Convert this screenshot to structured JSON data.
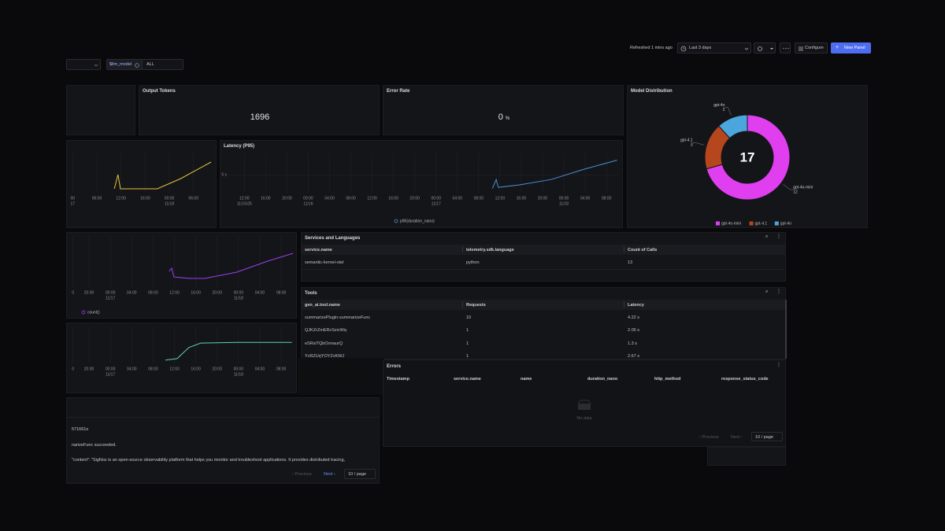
{
  "toolbar": {
    "refreshed": "Refreshed 1 mins ago",
    "time_range": "Last 3 days",
    "configure": "Configure",
    "new_panel": "New Panel"
  },
  "variables": {
    "name": "$llm_model",
    "value": "ALL"
  },
  "output_tokens": {
    "title": "Output Tokens",
    "value": 1696
  },
  "error_rate": {
    "title": "Error Rate",
    "value": 0,
    "unit": "%"
  },
  "chart_data": [
    {
      "type": "pie",
      "title": "Model Distribution",
      "total": 17,
      "donut": true,
      "categories": [
        "gpt-4o-mini",
        "gpt-4.1",
        "gpt-4o"
      ],
      "values": [
        12,
        3,
        2
      ],
      "colors": [
        "#e03ff0",
        "#b5461d",
        "#4aa6dc"
      ]
    },
    {
      "type": "line",
      "grid": true,
      "xlim": [
        -0.3,
        22.9
      ],
      "ylim": [
        0,
        10
      ],
      "xticks": [
        {
          "value": 0,
          "label": "00"
        },
        {
          "value": 4,
          "label": "06:00"
        },
        {
          "value": 8,
          "label": "12:00"
        },
        {
          "value": 12,
          "label": "16:00"
        },
        {
          "value": 16,
          "label": "00:00"
        },
        {
          "value": 20,
          "label": "06:00"
        }
      ],
      "x_dates": [
        {
          "value": 0,
          "label": "17"
        },
        {
          "value": 16,
          "label": "11/18"
        }
      ],
      "series": [
        {
          "color": "#e3c43a",
          "x": [
            6.9,
            7.5,
            7.9,
            14.0,
            17.9,
            22.9
          ],
          "values": [
            1.0,
            4.6,
            1.0,
            1.0,
            3.6,
            7.8
          ]
        }
      ]
    },
    {
      "type": "line",
      "title": "Latency (P95)",
      "grid": true,
      "xlim": [
        -3,
        70.2
      ],
      "ylim": [
        0,
        11
      ],
      "yticks": [
        {
          "value": 5,
          "label": "5 s"
        }
      ],
      "xticks": [
        {
          "value": 0,
          "label": "12:00"
        },
        {
          "value": 4,
          "label": "16:00"
        },
        {
          "value": 8,
          "label": "20:00"
        },
        {
          "value": 12,
          "label": "00:00"
        },
        {
          "value": 16,
          "label": "04:00"
        },
        {
          "value": 20,
          "label": "08:00"
        },
        {
          "value": 24,
          "label": "12:00"
        },
        {
          "value": 28,
          "label": "16:00"
        },
        {
          "value": 32,
          "label": "20:00"
        },
        {
          "value": 36,
          "label": "00:00"
        },
        {
          "value": 40,
          "label": "04:00"
        },
        {
          "value": 44,
          "label": "08:00"
        },
        {
          "value": 48,
          "label": "12:00"
        },
        {
          "value": 52,
          "label": "16:00"
        },
        {
          "value": 56,
          "label": "20:00"
        },
        {
          "value": 60,
          "label": "00:00"
        },
        {
          "value": 64,
          "label": "04:00"
        },
        {
          "value": 68,
          "label": "08:00"
        }
      ],
      "x_dates": [
        {
          "value": 0,
          "label": "11/15/25"
        },
        {
          "value": 12,
          "label": "11/16"
        },
        {
          "value": 36,
          "label": "11/17"
        },
        {
          "value": 60,
          "label": "11/18"
        }
      ],
      "series": [
        {
          "name": "p95(duration_nano)",
          "color": "#4a8fd6",
          "x": [
            46.6,
            47.3,
            47.7,
            51.7,
            57.6,
            63.6,
            70.0
          ],
          "values": [
            1.2,
            3.7,
            1.5,
            2.2,
            3.7,
            6.5,
            9.1
          ]
        }
      ]
    },
    {
      "type": "line",
      "grid": true,
      "xlim": [
        -3.4,
        38.2
      ],
      "ylim": [
        0,
        10
      ],
      "xticks": [
        {
          "value": -3,
          "label": "0"
        },
        {
          "value": 0,
          "label": "20:00"
        },
        {
          "value": 4,
          "label": "00:00"
        },
        {
          "value": 8,
          "label": "04:00"
        },
        {
          "value": 12,
          "label": "08:00"
        },
        {
          "value": 16,
          "label": "12:00"
        },
        {
          "value": 20,
          "label": "16:00"
        },
        {
          "value": 24,
          "label": "20:00"
        },
        {
          "value": 28,
          "label": "00:00"
        },
        {
          "value": 32,
          "label": "04:00"
        },
        {
          "value": 36,
          "label": "08:00"
        }
      ],
      "x_dates": [
        {
          "value": 4,
          "label": "11/17"
        },
        {
          "value": 28,
          "label": "11/18"
        }
      ],
      "series": [
        {
          "name": "count()",
          "color": "#9b3ff0",
          "x": [
            15.0,
            15.5,
            15.9,
            18.7,
            21.7,
            27.6,
            33.5,
            38.2
          ],
          "values": [
            3.1,
            3.7,
            2.0,
            1.7,
            1.7,
            2.9,
            5.1,
            6.6
          ]
        }
      ]
    },
    {
      "type": "line",
      "grid": true,
      "xlim": [
        -3.4,
        38.2
      ],
      "ylim": [
        0,
        10
      ],
      "xticks": [
        {
          "value": -3,
          "label": "0"
        },
        {
          "value": 0,
          "label": "20:00"
        },
        {
          "value": 4,
          "label": "00:00"
        },
        {
          "value": 8,
          "label": "04:00"
        },
        {
          "value": 12,
          "label": "08:00"
        },
        {
          "value": 16,
          "label": "12:00"
        },
        {
          "value": 20,
          "label": "16:00"
        },
        {
          "value": 24,
          "label": "20:00"
        },
        {
          "value": 28,
          "label": "00:00"
        },
        {
          "value": 32,
          "label": "04:00"
        },
        {
          "value": 36,
          "label": "08:00"
        }
      ],
      "x_dates": [
        {
          "value": 4,
          "label": "11/17"
        },
        {
          "value": 28,
          "label": "11/18"
        }
      ],
      "series": [
        {
          "color": "#5fd0b0",
          "x": [
            14.3,
            16.5,
            18.7,
            20.9,
            27.6,
            38.0
          ],
          "values": [
            0.9,
            1.3,
            4.3,
            5.5,
            5.7,
            5.7
          ]
        }
      ]
    }
  ],
  "services": {
    "title": "Services and Languages",
    "columns": [
      "service.name",
      "telemetry.sdk.language",
      "Count of Calls"
    ],
    "rows": [
      [
        "semantic-kernel-otel",
        "python",
        13
      ]
    ]
  },
  "tools": {
    "title": "Tools",
    "columns": [
      "gen_ai.tool.name",
      "Requests",
      "Latency"
    ],
    "rows": [
      [
        "summarizePlugin-summarizeFunc",
        10,
        "4.22 s"
      ],
      [
        "QJKZrZmERcSzicWq",
        1,
        "2.05 s"
      ],
      [
        "eSRsiTQbOonaurQ",
        1,
        "1.3 s"
      ],
      [
        "YcRZUrjYOYZvKWJ",
        1,
        "2.67 s"
      ]
    ]
  },
  "errors": {
    "title": "Errors",
    "columns": [
      "Timestamp",
      "service.name",
      "name",
      "duration_nano",
      "http_method",
      "response_status_code"
    ],
    "empty": "No data",
    "previous": "Previous",
    "next": "Next",
    "page_size": "10 / page"
  },
  "logs": {
    "lines": [
      "571661s",
      "narizeFunc succeeded.",
      "\"content\": \"SigNoz is an open-source observability platform that helps you monitor and troubleshoot applications. It provides distributed tracing,"
    ],
    "previous": "Previous",
    "next": "Next",
    "page_size": "10 / page"
  }
}
